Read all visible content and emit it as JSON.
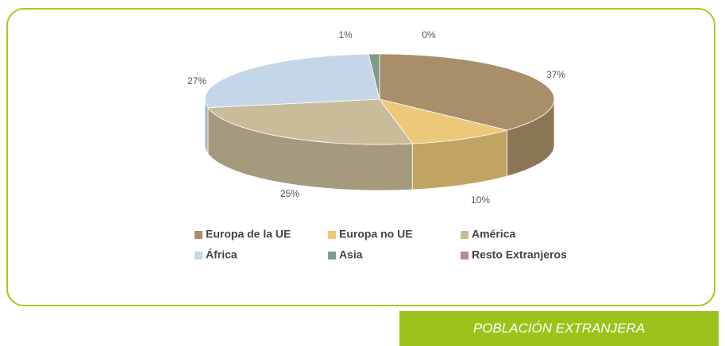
{
  "chart_data": {
    "type": "pie3d",
    "categories": [
      "Europa de la UE",
      "Europa no UE",
      "América",
      "África",
      "Asia",
      "Resto Extranjeros"
    ],
    "values": [
      37,
      10,
      25,
      27,
      1,
      0
    ],
    "value_labels": [
      "37%",
      "10%",
      "25%",
      "27%",
      "1%",
      "0%"
    ],
    "colors": [
      "#a88f69",
      "#ecc878",
      "#c9bc9a",
      "#c6d6e9",
      "#7e9b8b",
      "#b98a8a"
    ],
    "legend": "bottom"
  },
  "caption": "POBLACIÓN EXTRANJERA"
}
